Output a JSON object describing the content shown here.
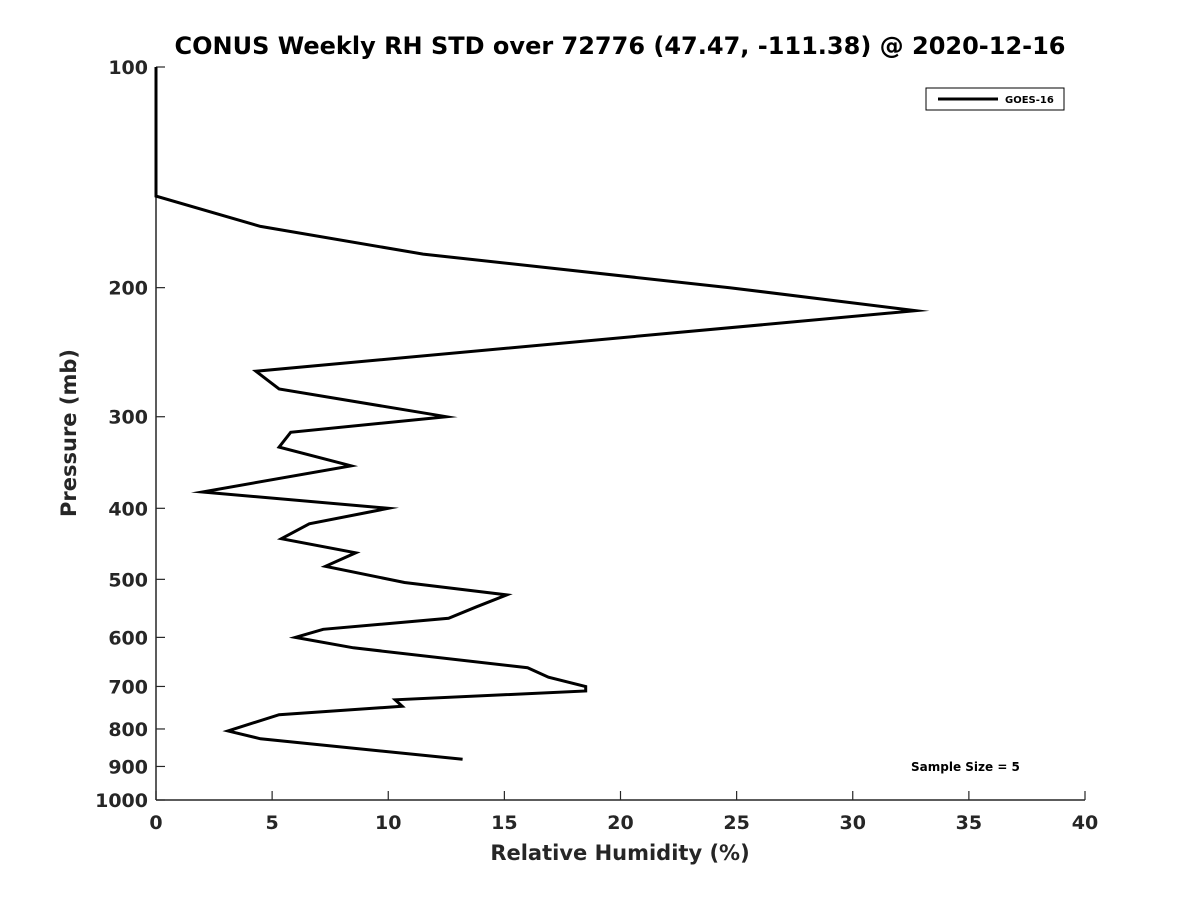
{
  "chart_data": {
    "type": "line",
    "title": "CONUS Weekly RH STD over 72776 (47.47, -111.38) @ 2020-12-16",
    "xlabel": "Relative Humidity (%)",
    "ylabel": "Pressure (mb)",
    "xlim": [
      0,
      40
    ],
    "ylim": [
      100,
      1000
    ],
    "yscale": "log",
    "y_reversed": true,
    "grid": false,
    "xticks": [
      0,
      5,
      10,
      15,
      20,
      25,
      30,
      35,
      40
    ],
    "xtick_labels": [
      "0",
      "5",
      "10",
      "15",
      "20",
      "25",
      "30",
      "35",
      "40"
    ],
    "yticks": [
      100,
      200,
      300,
      400,
      500,
      600,
      700,
      800,
      900,
      1000
    ],
    "ytick_labels": [
      "100",
      "200",
      "300",
      "400",
      "500",
      "600",
      "700",
      "800",
      "900",
      "1000"
    ],
    "legend_position": "top-right",
    "series": [
      {
        "name": "GOES-16",
        "color": "#000000",
        "x": [
          0,
          0,
          4.5,
          11.5,
          24.7,
          32.7,
          4.3,
          5.3,
          12.5,
          5.8,
          5.3,
          8.4,
          2.0,
          10.0,
          6.6,
          5.4,
          8.6,
          7.3,
          10.7,
          15.1,
          13.8,
          12.6,
          7.2,
          6.0,
          8.5,
          16.0,
          16.9,
          18.5,
          18.5,
          10.3,
          10.6,
          5.3,
          3.1,
          4.5,
          13.2
        ],
        "y": [
          100,
          150,
          165,
          180,
          200,
          215,
          260,
          275,
          300,
          315,
          330,
          350,
          380,
          400,
          420,
          440,
          460,
          480,
          505,
          525,
          545,
          565,
          585,
          600,
          620,
          660,
          680,
          700,
          710,
          730,
          745,
          765,
          805,
          825,
          880
        ]
      }
    ],
    "annotation": "Sample Size = 5"
  }
}
